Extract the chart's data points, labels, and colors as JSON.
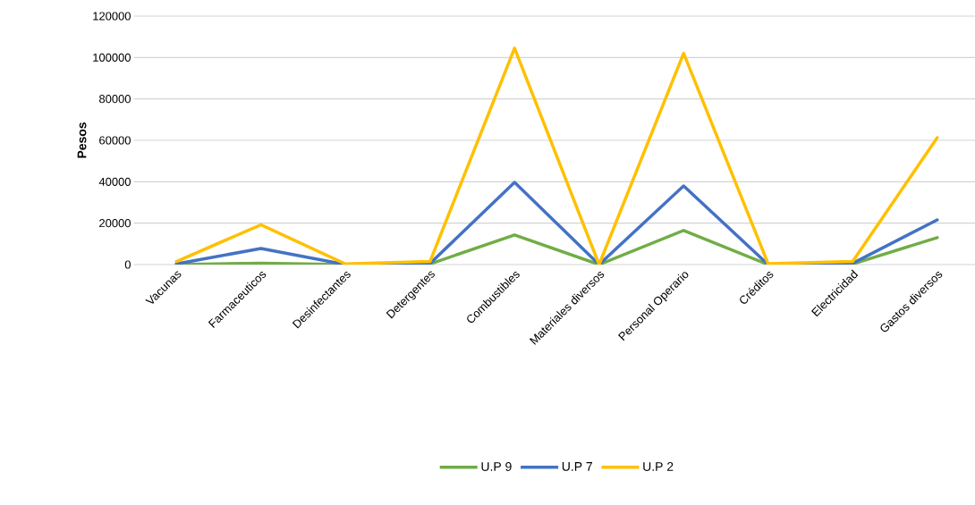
{
  "chart_data": {
    "type": "line",
    "ylabel": "Pesos",
    "categories": [
      "Vacunas",
      "Farmaceuticos",
      "Desinfectantes",
      "Detergentes",
      "Combustibles",
      "Materiales diversos",
      "Personal Operario",
      "Créditos",
      "Electricidad",
      "Gastos diversos"
    ],
    "series": [
      {
        "name": "U.P 9",
        "color": "#70ad47",
        "values": [
          0,
          700,
          0,
          300,
          14300,
          0,
          16500,
          0,
          300,
          13000
        ]
      },
      {
        "name": "U.P 7",
        "color": "#4472c4",
        "values": [
          300,
          7800,
          0,
          500,
          39700,
          0,
          38000,
          0,
          600,
          21600
        ]
      },
      {
        "name": "U.P 2",
        "color": "#ffc000",
        "values": [
          1500,
          19200,
          300,
          1500,
          104500,
          0,
          102000,
          400,
          1500,
          61300
        ]
      }
    ],
    "ylim": [
      0,
      120000
    ],
    "yticks": [
      0,
      20000,
      40000,
      60000,
      80000,
      100000,
      120000
    ],
    "grid": "y",
    "legend": "bottom",
    "marker": "none",
    "line_style": "solid"
  }
}
